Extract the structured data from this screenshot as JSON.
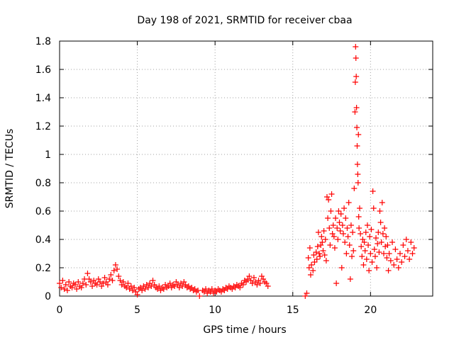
{
  "chart_data": {
    "type": "scatter",
    "title": "Day 198 of 2021, SRMTID for receiver cbaa",
    "xlabel": "GPS time / hours",
    "ylabel": "SRMTID / TECUs",
    "xlim": [
      0,
      24
    ],
    "ylim": [
      0,
      1.8
    ],
    "xticks": [
      0,
      5,
      10,
      15,
      20
    ],
    "xtick_labels": [
      "0",
      "5",
      "10",
      "15",
      "20"
    ],
    "yticks": [
      0,
      0.2,
      0.4,
      0.6,
      0.8,
      1,
      1.2,
      1.4,
      1.6,
      1.8
    ],
    "ytick_labels": [
      "0",
      "0.2",
      "0.4",
      "0.6",
      "0.8",
      "1",
      "1.2",
      "1.4",
      "1.6",
      "1.8"
    ],
    "grid": true,
    "marker": "+",
    "marker_color": "#ff0000",
    "series": [
      {
        "name": "SRMTID",
        "points": [
          [
            0.0,
            0.09
          ],
          [
            0.1,
            0.06
          ],
          [
            0.2,
            0.11
          ],
          [
            0.3,
            0.05
          ],
          [
            0.4,
            0.08
          ],
          [
            0.5,
            0.04
          ],
          [
            0.6,
            0.1
          ],
          [
            0.7,
            0.07
          ],
          [
            0.8,
            0.06
          ],
          [
            0.9,
            0.09
          ],
          [
            1.0,
            0.08
          ],
          [
            1.1,
            0.05
          ],
          [
            1.2,
            0.1
          ],
          [
            1.3,
            0.07
          ],
          [
            1.4,
            0.06
          ],
          [
            1.5,
            0.09
          ],
          [
            1.6,
            0.12
          ],
          [
            1.7,
            0.08
          ],
          [
            1.8,
            0.16
          ],
          [
            1.9,
            0.12
          ],
          [
            2.0,
            0.1
          ],
          [
            2.1,
            0.07
          ],
          [
            2.2,
            0.11
          ],
          [
            2.3,
            0.09
          ],
          [
            2.4,
            0.08
          ],
          [
            2.5,
            0.12
          ],
          [
            2.6,
            0.1
          ],
          [
            2.7,
            0.07
          ],
          [
            2.8,
            0.09
          ],
          [
            2.9,
            0.13
          ],
          [
            3.0,
            0.1
          ],
          [
            3.1,
            0.08
          ],
          [
            3.2,
            0.12
          ],
          [
            3.3,
            0.15
          ],
          [
            3.4,
            0.11
          ],
          [
            3.5,
            0.18
          ],
          [
            3.6,
            0.22
          ],
          [
            3.7,
            0.19
          ],
          [
            3.8,
            0.14
          ],
          [
            3.9,
            0.11
          ],
          [
            4.0,
            0.08
          ],
          [
            4.1,
            0.1
          ],
          [
            4.2,
            0.07
          ],
          [
            4.3,
            0.06
          ],
          [
            4.4,
            0.09
          ],
          [
            4.5,
            0.05
          ],
          [
            4.6,
            0.07
          ],
          [
            4.7,
            0.04
          ],
          [
            4.8,
            0.06
          ],
          [
            4.9,
            0.03
          ],
          [
            5.0,
            0.01
          ],
          [
            5.1,
            0.05
          ],
          [
            5.2,
            0.06
          ],
          [
            5.3,
            0.04
          ],
          [
            5.4,
            0.07
          ],
          [
            5.5,
            0.05
          ],
          [
            5.6,
            0.08
          ],
          [
            5.7,
            0.06
          ],
          [
            5.8,
            0.09
          ],
          [
            5.9,
            0.07
          ],
          [
            6.0,
            0.11
          ],
          [
            6.1,
            0.08
          ],
          [
            6.2,
            0.06
          ],
          [
            6.3,
            0.05
          ],
          [
            6.4,
            0.07
          ],
          [
            6.5,
            0.04
          ],
          [
            6.6,
            0.06
          ],
          [
            6.7,
            0.05
          ],
          [
            6.8,
            0.08
          ],
          [
            6.9,
            0.06
          ],
          [
            7.0,
            0.07
          ],
          [
            7.1,
            0.09
          ],
          [
            7.2,
            0.06
          ],
          [
            7.3,
            0.08
          ],
          [
            7.4,
            0.07
          ],
          [
            7.5,
            0.1
          ],
          [
            7.6,
            0.08
          ],
          [
            7.7,
            0.06
          ],
          [
            7.8,
            0.09
          ],
          [
            7.9,
            0.07
          ],
          [
            8.0,
            0.1
          ],
          [
            8.1,
            0.08
          ],
          [
            8.2,
            0.06
          ],
          [
            8.3,
            0.07
          ],
          [
            8.4,
            0.05
          ],
          [
            8.5,
            0.06
          ],
          [
            8.6,
            0.04
          ],
          [
            8.7,
            0.05
          ],
          [
            8.8,
            0.03
          ],
          [
            8.9,
            0.04
          ],
          [
            9.0,
            0.0
          ],
          [
            9.2,
            0.04
          ],
          [
            9.3,
            0.03
          ],
          [
            9.4,
            0.05
          ],
          [
            9.5,
            0.02
          ],
          [
            9.6,
            0.04
          ],
          [
            9.7,
            0.03
          ],
          [
            9.8,
            0.05
          ],
          [
            9.9,
            0.02
          ],
          [
            10.0,
            0.04
          ],
          [
            10.1,
            0.03
          ],
          [
            10.2,
            0.05
          ],
          [
            10.3,
            0.04
          ],
          [
            10.4,
            0.03
          ],
          [
            10.5,
            0.05
          ],
          [
            10.6,
            0.04
          ],
          [
            10.7,
            0.06
          ],
          [
            10.8,
            0.05
          ],
          [
            10.9,
            0.07
          ],
          [
            11.0,
            0.06
          ],
          [
            11.1,
            0.05
          ],
          [
            11.2,
            0.07
          ],
          [
            11.3,
            0.06
          ],
          [
            11.4,
            0.08
          ],
          [
            11.5,
            0.07
          ],
          [
            11.6,
            0.06
          ],
          [
            11.7,
            0.09
          ],
          [
            11.8,
            0.08
          ],
          [
            11.9,
            0.11
          ],
          [
            12.0,
            0.1
          ],
          [
            12.1,
            0.12
          ],
          [
            12.2,
            0.14
          ],
          [
            12.3,
            0.11
          ],
          [
            12.4,
            0.09
          ],
          [
            12.5,
            0.13
          ],
          [
            12.6,
            0.1
          ],
          [
            12.7,
            0.08
          ],
          [
            12.8,
            0.11
          ],
          [
            12.9,
            0.09
          ],
          [
            13.0,
            0.14
          ],
          [
            13.1,
            0.12
          ],
          [
            13.2,
            0.1
          ],
          [
            13.3,
            0.09
          ],
          [
            13.4,
            0.07
          ],
          [
            15.8,
            0.0
          ],
          [
            15.9,
            0.02
          ],
          [
            16.0,
            0.27
          ],
          [
            16.05,
            0.2
          ],
          [
            16.1,
            0.34
          ],
          [
            16.15,
            0.15
          ],
          [
            16.2,
            0.22
          ],
          [
            16.3,
            0.18
          ],
          [
            16.35,
            0.29
          ],
          [
            16.4,
            0.24
          ],
          [
            16.5,
            0.31
          ],
          [
            16.55,
            0.26
          ],
          [
            16.6,
            0.35
          ],
          [
            16.65,
            0.45
          ],
          [
            16.7,
            0.3
          ],
          [
            16.75,
            0.28
          ],
          [
            16.8,
            0.36
          ],
          [
            16.85,
            0.42
          ],
          [
            16.9,
            0.38
          ],
          [
            16.95,
            0.32
          ],
          [
            17.0,
            0.46
          ],
          [
            17.05,
            0.29
          ],
          [
            17.1,
            0.4
          ],
          [
            17.15,
            0.25
          ],
          [
            17.2,
            0.7
          ],
          [
            17.25,
            0.55
          ],
          [
            17.3,
            0.68
          ],
          [
            17.35,
            0.48
          ],
          [
            17.4,
            0.36
          ],
          [
            17.45,
            0.6
          ],
          [
            17.5,
            0.72
          ],
          [
            17.55,
            0.44
          ],
          [
            17.6,
            0.5
          ],
          [
            17.65,
            0.42
          ],
          [
            17.7,
            0.34
          ],
          [
            17.75,
            0.55
          ],
          [
            17.8,
            0.09
          ],
          [
            17.85,
            0.48
          ],
          [
            17.9,
            0.4
          ],
          [
            17.95,
            0.6
          ],
          [
            18.0,
            0.52
          ],
          [
            18.05,
            0.46
          ],
          [
            18.1,
            0.58
          ],
          [
            18.15,
            0.2
          ],
          [
            18.2,
            0.5
          ],
          [
            18.25,
            0.44
          ],
          [
            18.3,
            0.62
          ],
          [
            18.35,
            0.38
          ],
          [
            18.4,
            0.55
          ],
          [
            18.45,
            0.3
          ],
          [
            18.5,
            0.48
          ],
          [
            18.55,
            0.42
          ],
          [
            18.6,
            0.66
          ],
          [
            18.65,
            0.36
          ],
          [
            18.7,
            0.12
          ],
          [
            18.75,
            0.5
          ],
          [
            18.8,
            0.28
          ],
          [
            18.85,
            0.45
          ],
          [
            18.9,
            0.32
          ],
          [
            18.95,
            0.76
          ],
          [
            19.0,
            1.3
          ],
          [
            19.02,
            1.51
          ],
          [
            19.04,
            1.76
          ],
          [
            19.06,
            1.68
          ],
          [
            19.08,
            1.55
          ],
          [
            19.1,
            1.33
          ],
          [
            19.12,
            1.19
          ],
          [
            19.14,
            1.06
          ],
          [
            19.16,
            0.93
          ],
          [
            19.18,
            0.86
          ],
          [
            19.2,
            0.8
          ],
          [
            19.22,
            1.14
          ],
          [
            19.24,
            0.56
          ],
          [
            19.26,
            0.48
          ],
          [
            19.3,
            0.62
          ],
          [
            19.35,
            0.44
          ],
          [
            19.4,
            0.35
          ],
          [
            19.45,
            0.28
          ],
          [
            19.5,
            0.4
          ],
          [
            19.55,
            0.22
          ],
          [
            19.6,
            0.38
          ],
          [
            19.65,
            0.32
          ],
          [
            19.7,
            0.45
          ],
          [
            19.75,
            0.26
          ],
          [
            19.8,
            0.5
          ],
          [
            19.85,
            0.36
          ],
          [
            19.9,
            0.18
          ],
          [
            19.95,
            0.42
          ],
          [
            20.0,
            0.3
          ],
          [
            20.05,
            0.47
          ],
          [
            20.1,
            0.24
          ],
          [
            20.15,
            0.74
          ],
          [
            20.2,
            0.62
          ],
          [
            20.25,
            0.33
          ],
          [
            20.3,
            0.28
          ],
          [
            20.35,
            0.41
          ],
          [
            20.4,
            0.2
          ],
          [
            20.45,
            0.37
          ],
          [
            20.5,
            0.45
          ],
          [
            20.55,
            0.31
          ],
          [
            20.6,
            0.6
          ],
          [
            20.65,
            0.52
          ],
          [
            20.7,
            0.38
          ],
          [
            20.75,
            0.66
          ],
          [
            20.8,
            0.44
          ],
          [
            20.85,
            0.3
          ],
          [
            20.9,
            0.48
          ],
          [
            20.95,
            0.35
          ],
          [
            21.0,
            0.42
          ],
          [
            21.05,
            0.27
          ],
          [
            21.1,
            0.36
          ],
          [
            21.15,
            0.18
          ],
          [
            21.2,
            0.3
          ],
          [
            21.3,
            0.25
          ],
          [
            21.4,
            0.38
          ],
          [
            21.5,
            0.22
          ],
          [
            21.6,
            0.33
          ],
          [
            21.7,
            0.26
          ],
          [
            21.8,
            0.2
          ],
          [
            21.9,
            0.3
          ],
          [
            22.0,
            0.24
          ],
          [
            22.1,
            0.36
          ],
          [
            22.2,
            0.28
          ],
          [
            22.3,
            0.4
          ],
          [
            22.4,
            0.32
          ],
          [
            22.5,
            0.26
          ],
          [
            22.6,
            0.38
          ],
          [
            22.7,
            0.3
          ],
          [
            22.8,
            0.34
          ]
        ]
      }
    ]
  }
}
